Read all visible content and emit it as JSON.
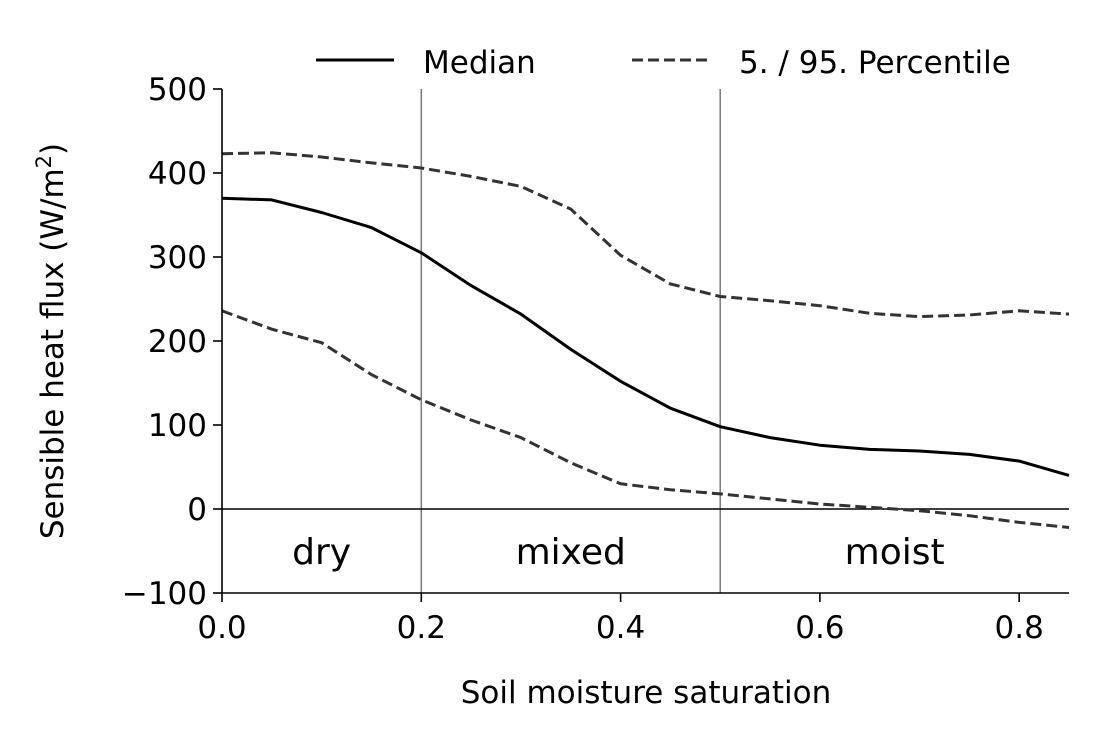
{
  "chart_data": {
    "type": "line",
    "title": "",
    "xlabel": "Soil moisture saturation",
    "ylabel": "Sensible heat flux (W/m",
    "ylabel_sup": "2",
    "ylabel_close": ")",
    "xlim": [
      0.0,
      0.85
    ],
    "ylim": [
      -100,
      500
    ],
    "x_ticks": [
      0.0,
      0.2,
      0.4,
      0.6,
      0.8
    ],
    "x_tick_labels": [
      "0.0",
      "0.2",
      "0.4",
      "0.6",
      "0.8"
    ],
    "y_ticks": [
      -100,
      0,
      100,
      200,
      300,
      400,
      500
    ],
    "y_tick_labels": [
      "−100",
      "0",
      "100",
      "200",
      "300",
      "400",
      "500"
    ],
    "grid": false,
    "legend_position": "top",
    "zero_line": true,
    "vertical_lines": [
      0.2,
      0.5
    ],
    "regions": [
      {
        "label": "dry",
        "x": 0.1
      },
      {
        "label": "mixed",
        "x": 0.35
      },
      {
        "label": "moist",
        "x": 0.675
      }
    ],
    "region_label_y": -50,
    "x": [
      0.0,
      0.05,
      0.1,
      0.15,
      0.2,
      0.25,
      0.3,
      0.35,
      0.4,
      0.45,
      0.5,
      0.55,
      0.6,
      0.65,
      0.7,
      0.75,
      0.8,
      0.85
    ],
    "series": [
      {
        "name": "Median",
        "style": "solid",
        "color": "#000000",
        "values": [
          370,
          368,
          353,
          335,
          305,
          266,
          232,
          190,
          152,
          120,
          98,
          85,
          76,
          71,
          69,
          65,
          57,
          40
        ]
      },
      {
        "name": "5. / 95. Percentile",
        "style": "dashed",
        "color": "#333333",
        "values": [
          423,
          424,
          419,
          412,
          406,
          396,
          384,
          357,
          302,
          268,
          253,
          248,
          242,
          233,
          229,
          231,
          236,
          232
        ]
      },
      {
        "name": "5. / 95. Percentile",
        "style": "dashed",
        "color": "#333333",
        "legend": false,
        "values": [
          236,
          214,
          198,
          160,
          130,
          106,
          85,
          55,
          30,
          23,
          18,
          12,
          6,
          2,
          -2,
          -8,
          -16,
          -22
        ]
      }
    ]
  }
}
